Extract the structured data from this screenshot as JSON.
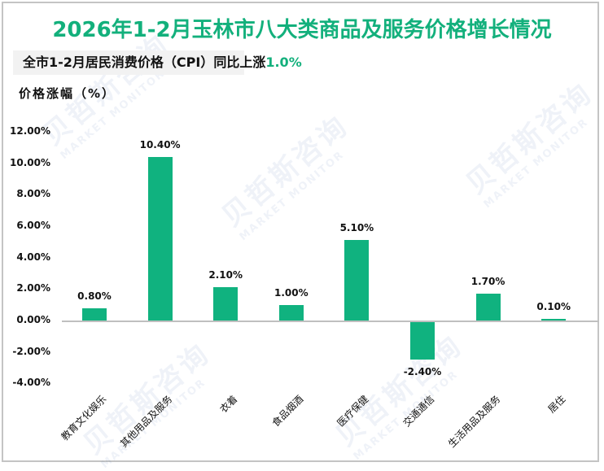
{
  "title": {
    "year_part": "2026年1-2月",
    "rest": "玉林市八大类商品及服务价格增长情况"
  },
  "subtitle": {
    "text": "全市1-2月居民消费价格（CPI）同比上涨",
    "highlight": "1.0%"
  },
  "y_axis_title": "价格涨幅（%）",
  "watermark": {
    "cn": "贝哲斯咨询",
    "en": "MARKET MONITOR"
  },
  "colors": {
    "title": "#13b07c",
    "bar": "#10b27f",
    "highlight": "#13b07c",
    "axis": "#bfbfbf",
    "subtitle_bg": "#f2f2f2"
  },
  "chart_data": {
    "type": "bar",
    "title": "2026年1-2月玉林市八大类商品及服务价格增长情况",
    "subtitle": "全市1-2月居民消费价格（CPI）同比上涨1.0%",
    "xlabel": "",
    "ylabel": "价格涨幅（%）",
    "categories": [
      "教育文化娱乐",
      "其他用品及服务",
      "衣着",
      "食品烟酒",
      "医疗保健",
      "交通通信",
      "生活用品及服务",
      "居住"
    ],
    "values": [
      0.8,
      10.4,
      2.1,
      1.0,
      5.1,
      -2.4,
      1.7,
      0.1
    ],
    "value_labels": [
      "0.80%",
      "10.40%",
      "2.10%",
      "1.00%",
      "5.10%",
      "-2.40%",
      "1.70%",
      "0.10%"
    ],
    "ylim": [
      -4,
      12
    ],
    "yticks": [
      12,
      10,
      8,
      6,
      4,
      2,
      0,
      -2,
      -4
    ],
    "ytick_labels": [
      "12.00%",
      "10.00%",
      "8.00%",
      "6.00%",
      "4.00%",
      "2.00%",
      "0.00%",
      "-2.00%",
      "-4.00%"
    ],
    "grid": false,
    "legend": null
  }
}
